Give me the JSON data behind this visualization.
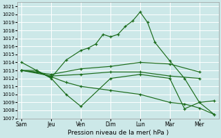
{
  "xlabel": "Pression niveau de la mer( hPa )",
  "ylim": [
    1007,
    1021.5
  ],
  "yticks": [
    1007,
    1008,
    1009,
    1010,
    1011,
    1012,
    1013,
    1014,
    1015,
    1016,
    1017,
    1018,
    1019,
    1020,
    1021
  ],
  "day_labels": [
    "Sam",
    "Jeu",
    "Ven",
    "Dim",
    "Lun",
    "Mar",
    "Mer"
  ],
  "day_positions": [
    0,
    2,
    4,
    6,
    8,
    10,
    12
  ],
  "xlim": [
    -0.3,
    13.3
  ],
  "background_color": "#cce8e8",
  "grid_color": "#ffffff",
  "line_color": "#1a6b1a",
  "series": [
    {
      "x": [
        0,
        1,
        2,
        3,
        4,
        4.5,
        5,
        5.5,
        6,
        6.5,
        7,
        7.5,
        8,
        8.5,
        9,
        10,
        11,
        12,
        13
      ],
      "y": [
        1014.0,
        1013.0,
        1012.1,
        1014.3,
        1015.5,
        1015.8,
        1016.3,
        1017.5,
        1017.2,
        1017.5,
        1018.5,
        1019.2,
        1020.3,
        1019.0,
        1016.5,
        1014.2,
        1012.0,
        1009.0,
        1009.2
      ]
    },
    {
      "x": [
        0,
        2,
        4,
        6,
        8,
        10,
        12
      ],
      "y": [
        1013.0,
        1012.5,
        1013.2,
        1013.5,
        1014.0,
        1013.8,
        1012.8
      ]
    },
    {
      "x": [
        0,
        2,
        4,
        6,
        8,
        10,
        12
      ],
      "y": [
        1013.0,
        1012.3,
        1012.5,
        1012.8,
        1012.8,
        1012.3,
        1012.0
      ]
    },
    {
      "x": [
        0,
        1,
        2,
        3,
        4,
        6,
        8,
        10,
        11,
        12,
        13
      ],
      "y": [
        1013.0,
        1013.0,
        1012.0,
        1010.0,
        1008.5,
        1012.0,
        1012.5,
        1012.0,
        1008.2,
        1009.0,
        1007.5
      ]
    },
    {
      "x": [
        0,
        1,
        2,
        3,
        4,
        6,
        8,
        10,
        11,
        12,
        13
      ],
      "y": [
        1013.0,
        1012.8,
        1012.2,
        1011.5,
        1011.0,
        1010.5,
        1010.0,
        1009.0,
        1008.8,
        1008.3,
        1007.5
      ]
    }
  ]
}
